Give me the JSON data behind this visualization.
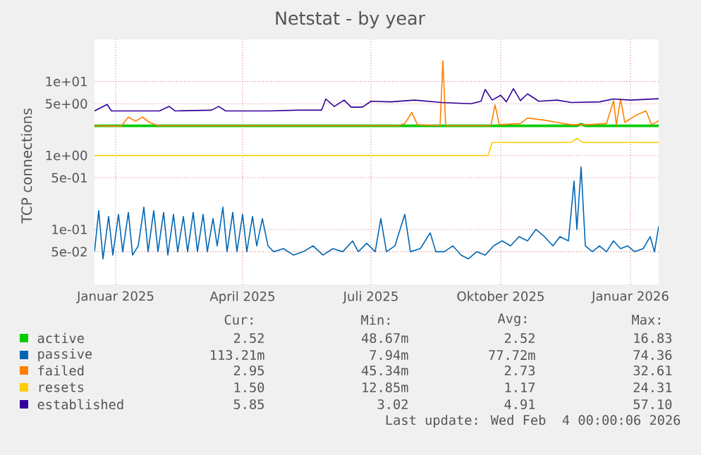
{
  "chart_data": {
    "type": "line",
    "title": "Netstat - by year",
    "ylabel": "TCP connections",
    "log": "y",
    "grid": true,
    "legend": "bottom",
    "marker": "none",
    "line_style": "solid",
    "xlim": [
      "2024-12-17",
      "2026-01-21"
    ],
    "xticks": [
      {
        "value": "2025-01-01",
        "label": "Januar 2025"
      },
      {
        "value": "2025-04-01",
        "label": "April 2025"
      },
      {
        "value": "2025-07-01",
        "label": "Juli 2025"
      },
      {
        "value": "2025-10-01",
        "label": "Oktober 2025"
      },
      {
        "value": "2026-01-01",
        "label": "Januar 2026"
      }
    ],
    "ylim": [
      0.018,
      37
    ],
    "yticks": [
      {
        "value": 0.05,
        "label": "5e-02"
      },
      {
        "value": 0.1,
        "label": "1e-01"
      },
      {
        "value": 0.5,
        "label": "5e-01"
      },
      {
        "value": 1,
        "label": "1e+00"
      },
      {
        "value": 5,
        "label": "5e+00"
      },
      {
        "value": 10,
        "label": "1e+01"
      }
    ],
    "series": [
      {
        "name": "active",
        "color": "#00cc00",
        "x": [
          "2024-12-17",
          "2025-11-24",
          "2025-11-27",
          "2025-11-30",
          "2026-01-21"
        ],
        "values": [
          2.52,
          2.52,
          2.65,
          2.52,
          2.52
        ]
      },
      {
        "name": "passive",
        "color": "#0066b3",
        "x": [
          "2024-12-17",
          "2024-12-20",
          "2024-12-23",
          "2024-12-27",
          "2024-12-30",
          "2025-01-03",
          "2025-01-06",
          "2025-01-10",
          "2025-01-13",
          "2025-01-17",
          "2025-01-21",
          "2025-01-24",
          "2025-01-28",
          "2025-01-31",
          "2025-02-04",
          "2025-02-07",
          "2025-02-11",
          "2025-02-14",
          "2025-02-18",
          "2025-02-21",
          "2025-02-25",
          "2025-02-28",
          "2025-03-04",
          "2025-03-07",
          "2025-03-11",
          "2025-03-14",
          "2025-03-18",
          "2025-03-21",
          "2025-03-25",
          "2025-03-28",
          "2025-04-01",
          "2025-04-04",
          "2025-04-08",
          "2025-04-11",
          "2025-04-15",
          "2025-04-19",
          "2025-04-23",
          "2025-04-30",
          "2025-05-07",
          "2025-05-14",
          "2025-05-21",
          "2025-05-28",
          "2025-06-04",
          "2025-06-11",
          "2025-06-18",
          "2025-06-22",
          "2025-06-28",
          "2025-07-04",
          "2025-07-08",
          "2025-07-12",
          "2025-07-18",
          "2025-07-25",
          "2025-07-29",
          "2025-08-05",
          "2025-08-12",
          "2025-08-16",
          "2025-08-22",
          "2025-08-28",
          "2025-09-03",
          "2025-09-08",
          "2025-09-14",
          "2025-09-20",
          "2025-09-26",
          "2025-10-02",
          "2025-10-08",
          "2025-10-14",
          "2025-10-20",
          "2025-10-26",
          "2025-11-01",
          "2025-11-07",
          "2025-11-12",
          "2025-11-18",
          "2025-11-22",
          "2025-11-24",
          "2025-11-27",
          "2025-11-30",
          "2025-12-05",
          "2025-12-10",
          "2025-12-15",
          "2025-12-20",
          "2025-12-25",
          "2025-12-30",
          "2026-01-04",
          "2026-01-10",
          "2026-01-15",
          "2026-01-18",
          "2026-01-21"
        ],
        "values": [
          0.05,
          0.18,
          0.04,
          0.15,
          0.045,
          0.16,
          0.05,
          0.17,
          0.045,
          0.06,
          0.2,
          0.05,
          0.18,
          0.05,
          0.17,
          0.045,
          0.16,
          0.05,
          0.15,
          0.05,
          0.17,
          0.05,
          0.16,
          0.05,
          0.14,
          0.06,
          0.2,
          0.05,
          0.17,
          0.05,
          0.16,
          0.05,
          0.15,
          0.06,
          0.14,
          0.06,
          0.05,
          0.055,
          0.045,
          0.05,
          0.06,
          0.045,
          0.055,
          0.05,
          0.07,
          0.05,
          0.065,
          0.05,
          0.14,
          0.05,
          0.06,
          0.16,
          0.05,
          0.055,
          0.09,
          0.05,
          0.05,
          0.06,
          0.045,
          0.04,
          0.05,
          0.045,
          0.06,
          0.07,
          0.06,
          0.08,
          0.07,
          0.1,
          0.08,
          0.06,
          0.08,
          0.07,
          0.45,
          0.1,
          0.7,
          0.06,
          0.05,
          0.06,
          0.05,
          0.07,
          0.055,
          0.06,
          0.05,
          0.055,
          0.08,
          0.05,
          0.11
        ]
      },
      {
        "name": "failed",
        "color": "#ff8000",
        "x": [
          "2024-12-17",
          "2024-12-20",
          "2025-01-05",
          "2025-01-10",
          "2025-01-15",
          "2025-01-20",
          "2025-01-25",
          "2025-01-31",
          "2025-07-20",
          "2025-07-25",
          "2025-07-30",
          "2025-08-03",
          "2025-08-19",
          "2025-08-21",
          "2025-08-23",
          "2025-09-24",
          "2025-09-27",
          "2025-09-30",
          "2025-10-15",
          "2025-10-20",
          "2025-11-01",
          "2025-11-10",
          "2025-11-20",
          "2025-12-01",
          "2025-12-15",
          "2025-12-20",
          "2025-12-22",
          "2025-12-25",
          "2025-12-28",
          "2026-01-05",
          "2026-01-12",
          "2026-01-16",
          "2026-01-21"
        ],
        "values": [
          2.6,
          2.5,
          2.5,
          3.3,
          2.9,
          3.3,
          2.8,
          2.52,
          2.52,
          2.7,
          3.8,
          2.6,
          2.52,
          19,
          2.52,
          2.52,
          4.8,
          2.6,
          2.7,
          3.2,
          3.0,
          2.8,
          2.6,
          2.6,
          2.7,
          5.5,
          2.6,
          5.8,
          2.8,
          3.5,
          4.0,
          2.6,
          2.95
        ]
      },
      {
        "name": "resets",
        "color": "#ffcc00",
        "x": [
          "2024-12-17",
          "2025-09-22",
          "2025-09-25",
          "2025-11-20",
          "2025-11-24",
          "2025-11-28",
          "2026-01-21"
        ],
        "values": [
          1.0,
          1.0,
          1.5,
          1.5,
          1.7,
          1.5,
          1.5
        ]
      },
      {
        "name": "established",
        "color": "#330099",
        "x": [
          "2024-12-17",
          "2024-12-26",
          "2024-12-29",
          "2025-01-20",
          "2025-02-01",
          "2025-02-08",
          "2025-02-12",
          "2025-03-10",
          "2025-03-15",
          "2025-03-20",
          "2025-04-20",
          "2025-05-10",
          "2025-05-27",
          "2025-05-30",
          "2025-06-05",
          "2025-06-12",
          "2025-06-17",
          "2025-06-25",
          "2025-07-01",
          "2025-07-15",
          "2025-08-01",
          "2025-08-20",
          "2025-09-10",
          "2025-09-17",
          "2025-09-20",
          "2025-09-25",
          "2025-10-01",
          "2025-10-05",
          "2025-10-10",
          "2025-10-15",
          "2025-10-20",
          "2025-10-28",
          "2025-11-10",
          "2025-11-20",
          "2025-12-10",
          "2025-12-20",
          "2026-01-01",
          "2026-01-21"
        ],
        "values": [
          4.0,
          4.9,
          4.0,
          4.0,
          4.0,
          4.6,
          4.0,
          4.1,
          4.6,
          4.0,
          4.0,
          4.1,
          4.1,
          5.8,
          4.6,
          5.6,
          4.5,
          4.5,
          5.4,
          5.3,
          5.6,
          5.2,
          5.0,
          5.4,
          7.8,
          5.6,
          6.5,
          5.3,
          8.0,
          5.5,
          6.8,
          5.4,
          5.6,
          5.2,
          5.3,
          5.8,
          5.6,
          5.85
        ]
      }
    ],
    "annotations": [
      "Cur:",
      "Min:",
      "Avg:",
      "Max:",
      "2.52",
      "48.67m",
      "2.52",
      "16.83",
      "113.21m",
      "7.94m",
      "77.72m",
      "74.36",
      "2.95",
      "45.34m",
      "2.73",
      "32.61",
      "1.50",
      "12.85m",
      "1.17",
      "24.31",
      "5.85",
      "3.02",
      "4.91",
      "57.10",
      "Last update: Wed Feb  4 00:00:06 2026"
    ]
  }
}
